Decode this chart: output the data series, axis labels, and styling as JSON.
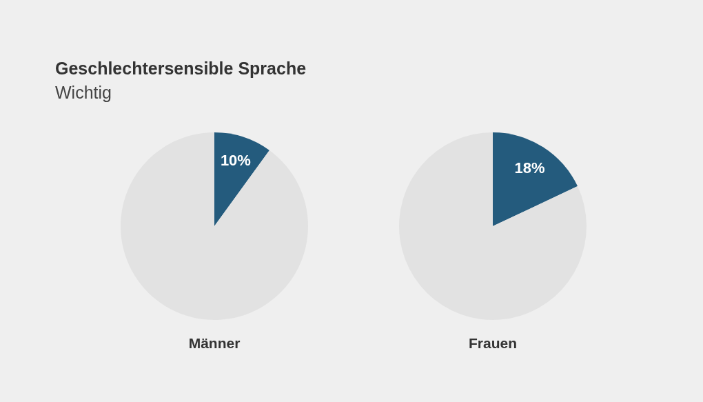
{
  "chart_data": [
    {
      "type": "pie",
      "title": "Geschlechtersensible Sprache",
      "subtitle": "Wichtig",
      "xlabel": "Männer",
      "categories": [
        null,
        null
      ],
      "values": [
        10,
        90
      ],
      "colors": [
        "#245b7d",
        "#e2e2e2"
      ],
      "value_labels": [
        "10%",
        null
      ]
    },
    {
      "type": "pie",
      "xlabel": "Frauen",
      "categories": [
        null,
        null
      ],
      "values": [
        18,
        82
      ],
      "colors": [
        "#245b7d",
        "#e2e2e2"
      ],
      "value_labels": [
        "18%",
        null
      ]
    }
  ]
}
